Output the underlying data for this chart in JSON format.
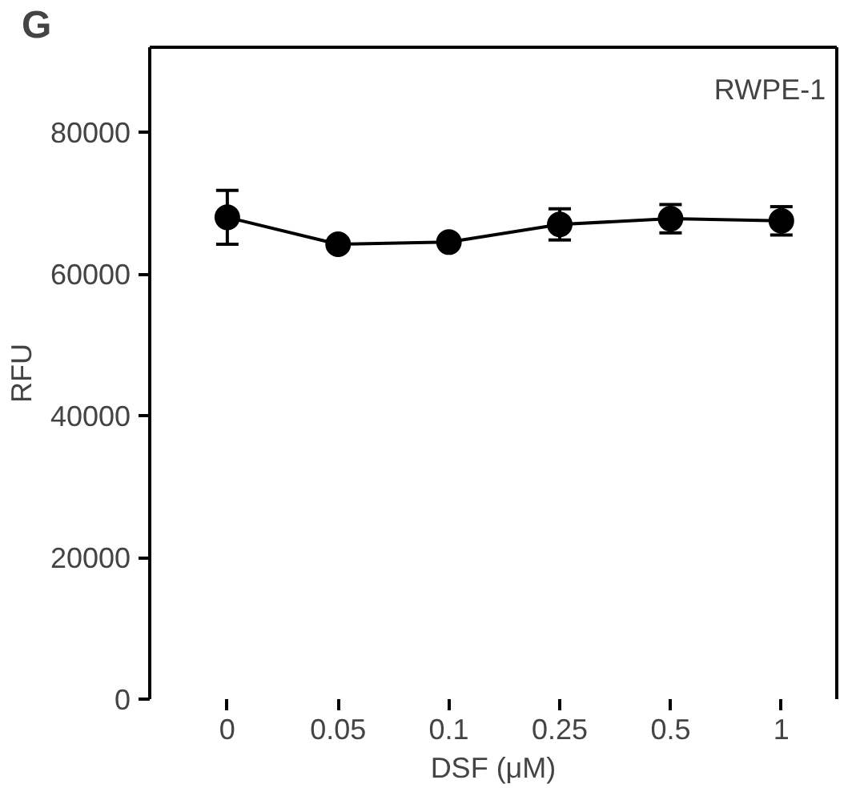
{
  "chart_data": {
    "type": "line",
    "title": "G",
    "xlabel": "DSF (μM)",
    "ylabel": "RFU",
    "annotations": [
      "RWPE-1"
    ],
    "categories": [
      "0",
      "0.05",
      "0.1",
      "0.25",
      "0.5",
      "1"
    ],
    "series": [
      {
        "color": "#000000",
        "values": [
          68000,
          64200,
          64500,
          67000,
          67800,
          67500
        ],
        "errors": [
          3800,
          null,
          null,
          2200,
          2000,
          2000
        ]
      }
    ],
    "ylim": [
      0,
      92000
    ],
    "yticks": [
      0,
      20000,
      40000,
      60000,
      80000
    ],
    "marker": "circle",
    "line_style": "solid",
    "grid": false
  }
}
